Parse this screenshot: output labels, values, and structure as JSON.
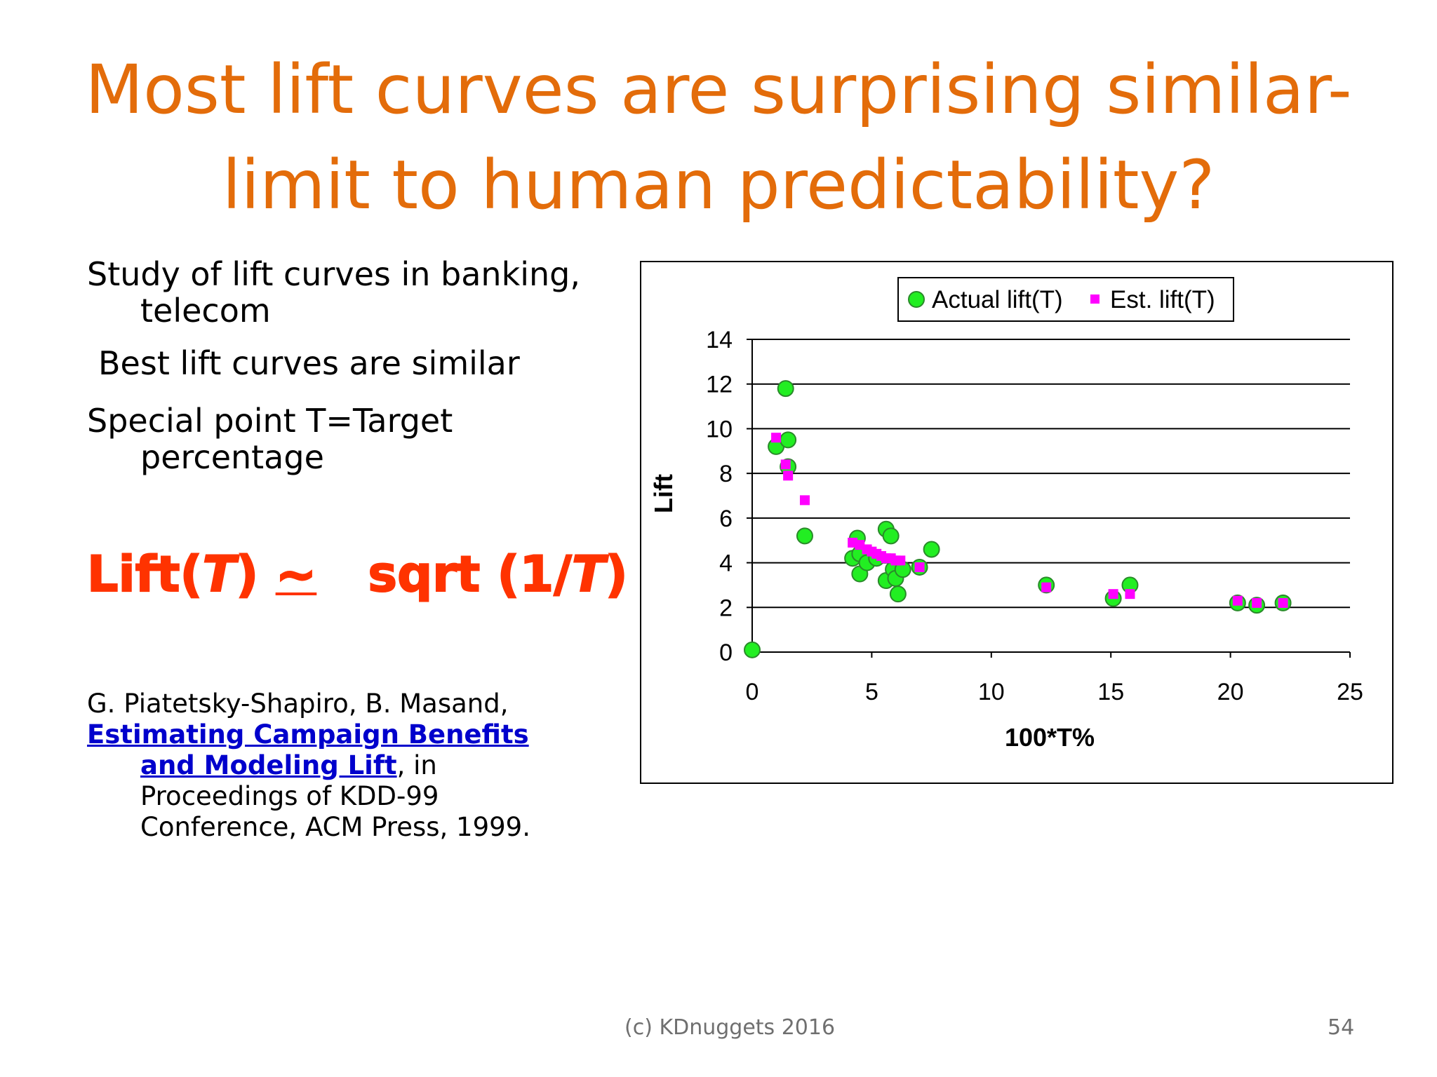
{
  "slide": {
    "title_line1": "Most lift curves are surprising similar-",
    "title_line2": "limit to human predictability?",
    "bullet1_line1": "Study of lift curves in banking,",
    "bullet1_line2": "telecom",
    "bullet2": "Best lift curves are similar",
    "bullet3_line1": "Special point T=Target",
    "bullet3_line2": "percentage",
    "formula": {
      "part1": "Lift(",
      "var1": "T",
      "part2": ") ",
      "tilde": "~",
      "part3": "   sqrt (1/",
      "var2": "T",
      "part4": ")"
    },
    "reference": {
      "authors": "G. Piatetsky-Shapiro, B. Masand,",
      "link_text": "Estimating Campaign Benefits and Modeling Lift",
      "rest": ", in Proceedings of KDD-99 Conference, ACM Press, 1999."
    },
    "footer": "(c) KDnuggets 2016",
    "page_number": "54"
  },
  "chart_data": {
    "type": "scatter",
    "title": "",
    "xlabel": "100*T%",
    "ylabel": "Lift",
    "xlim": [
      0,
      25
    ],
    "ylim": [
      0,
      14
    ],
    "x_ticks": [
      "0",
      "5",
      "10",
      "15",
      "20",
      "25"
    ],
    "y_ticks": [
      "0",
      "2",
      "4",
      "6",
      "8",
      "10",
      "12",
      "14"
    ],
    "grid": "horizontal",
    "legend_position": "top",
    "series": [
      {
        "name": "Actual lift(T)",
        "marker": "circle",
        "color": "#22ee22",
        "points": [
          [
            0,
            0.1
          ],
          [
            1.0,
            9.2
          ],
          [
            1.4,
            11.8
          ],
          [
            1.5,
            9.5
          ],
          [
            1.5,
            8.3
          ],
          [
            2.2,
            5.2
          ],
          [
            4.2,
            4.2
          ],
          [
            4.4,
            5.1
          ],
          [
            4.5,
            4.4
          ],
          [
            4.5,
            3.5
          ],
          [
            4.8,
            4.0
          ],
          [
            5.2,
            4.2
          ],
          [
            5.6,
            5.5
          ],
          [
            5.6,
            3.2
          ],
          [
            5.8,
            5.2
          ],
          [
            5.9,
            3.7
          ],
          [
            6.0,
            3.3
          ],
          [
            6.1,
            2.6
          ],
          [
            6.3,
            3.7
          ],
          [
            7.0,
            3.8
          ],
          [
            7.5,
            4.6
          ],
          [
            12.3,
            3.0
          ],
          [
            15.1,
            2.4
          ],
          [
            15.8,
            3.0
          ],
          [
            20.3,
            2.2
          ],
          [
            21.1,
            2.1
          ],
          [
            22.2,
            2.2
          ]
        ]
      },
      {
        "name": "Est. lift(T)",
        "marker": "square",
        "color": "#ff00ff",
        "points": [
          [
            1.0,
            9.6
          ],
          [
            1.4,
            8.4
          ],
          [
            1.5,
            7.9
          ],
          [
            2.2,
            6.8
          ],
          [
            4.2,
            4.9
          ],
          [
            4.5,
            4.8
          ],
          [
            4.8,
            4.6
          ],
          [
            5.0,
            4.5
          ],
          [
            5.2,
            4.4
          ],
          [
            5.4,
            4.3
          ],
          [
            5.6,
            4.2
          ],
          [
            5.8,
            4.2
          ],
          [
            6.0,
            4.1
          ],
          [
            6.2,
            4.1
          ],
          [
            7.0,
            3.8
          ],
          [
            12.3,
            2.9
          ],
          [
            15.1,
            2.6
          ],
          [
            15.8,
            2.6
          ],
          [
            20.3,
            2.3
          ],
          [
            21.1,
            2.2
          ],
          [
            22.2,
            2.2
          ]
        ]
      }
    ]
  }
}
